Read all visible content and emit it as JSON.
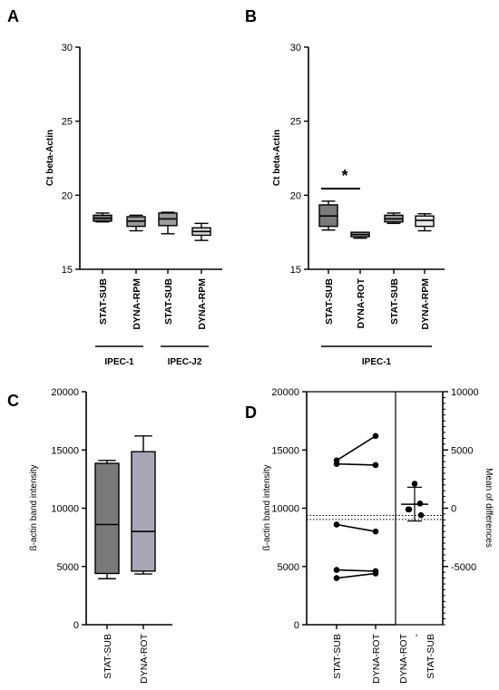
{
  "colors": {
    "dark_grey": "#7a7a7a",
    "mid_grey": "#9a9a9a",
    "light_grey": "#d6d6d6",
    "very_light_grey": "#e6e6e6",
    "violet_grey": "#a8a6b6"
  },
  "chart_data": [
    {
      "panel": "A",
      "type": "box",
      "ylabel": "Ct beta-Actin",
      "ylim": [
        15,
        30
      ],
      "yticks": [
        15,
        20,
        25,
        30
      ],
      "categories": [
        "STAT-SUB",
        "DYNA-RPM",
        "STAT-SUB",
        "DYNA-RPM"
      ],
      "groups": [
        {
          "label": "IPEC-1",
          "members": [
            0,
            1
          ]
        },
        {
          "label": "IPEC-J2",
          "members": [
            2,
            3
          ]
        }
      ],
      "boxes": [
        {
          "min": 18.2,
          "q1": 18.25,
          "median": 18.45,
          "q3": 18.65,
          "max": 18.8
        },
        {
          "min": 17.6,
          "q1": 17.9,
          "median": 18.25,
          "q3": 18.55,
          "max": 18.65
        },
        {
          "min": 17.4,
          "q1": 17.95,
          "median": 18.4,
          "q3": 18.8,
          "max": 18.85
        },
        {
          "min": 16.95,
          "q1": 17.3,
          "median": 17.55,
          "q3": 17.8,
          "max": 18.1
        }
      ]
    },
    {
      "panel": "B",
      "type": "box",
      "ylabel": "Ct beta-Actin",
      "ylim": [
        15,
        30
      ],
      "yticks": [
        15,
        20,
        25,
        30
      ],
      "categories": [
        "STAT-SUB",
        "DYNA-ROT",
        "STAT-SUB",
        "DYNA-RPM"
      ],
      "groups": [
        {
          "label": "IPEC-1",
          "members": [
            0,
            1,
            2,
            3
          ]
        }
      ],
      "annotation": "*",
      "boxes": [
        {
          "min": 17.65,
          "q1": 17.9,
          "median": 18.6,
          "q3": 19.35,
          "max": 19.6
        },
        {
          "min": 17.1,
          "q1": 17.2,
          "median": 17.35,
          "q3": 17.5,
          "max": 17.5
        },
        {
          "min": 18.1,
          "q1": 18.2,
          "median": 18.4,
          "q3": 18.65,
          "max": 18.8
        },
        {
          "min": 17.6,
          "q1": 17.9,
          "median": 18.3,
          "q3": 18.6,
          "max": 18.75
        }
      ]
    },
    {
      "panel": "C",
      "type": "box",
      "ylabel": "ß-actin band intensity",
      "ylim": [
        0,
        20000
      ],
      "yticks": [
        0,
        5000,
        10000,
        15000,
        20000
      ],
      "categories": [
        "STAT-SUB",
        "DYNA-ROT"
      ],
      "boxes": [
        {
          "min": 3950,
          "q1": 4400,
          "median": 8600,
          "q3": 13850,
          "max": 14100
        },
        {
          "min": 4350,
          "q1": 4600,
          "median": 8000,
          "q3": 14850,
          "max": 16200
        }
      ]
    },
    {
      "panel": "D",
      "type": "estimation",
      "ylabel": "ß-actin band intensity",
      "ylabel_right": "Mean of differences",
      "ylim": [
        0,
        20000
      ],
      "yticks": [
        0,
        5000,
        10000,
        15000,
        20000
      ],
      "ylim_right": [
        -10000,
        10000
      ],
      "yticks_right": [
        -5000,
        0,
        5000,
        10000
      ],
      "categories": [
        "STAT-SUB",
        "DYNA-ROT"
      ],
      "diff_label_top": "DYNA-ROT",
      "diff_label_dash": "-",
      "diff_label_bottom": "STAT-SUB",
      "pairs": [
        [
          14100,
          16200
        ],
        [
          13800,
          13700
        ],
        [
          8600,
          8000
        ],
        [
          4700,
          4600
        ],
        [
          4000,
          4400
        ]
      ],
      "differences": [
        2100,
        -100,
        -600,
        -100,
        400
      ],
      "mean_difference": 340,
      "ci": [
        -1100,
        1800
      ]
    }
  ],
  "panels": {
    "A": "A",
    "B": "B",
    "C": "C",
    "D": "D"
  }
}
